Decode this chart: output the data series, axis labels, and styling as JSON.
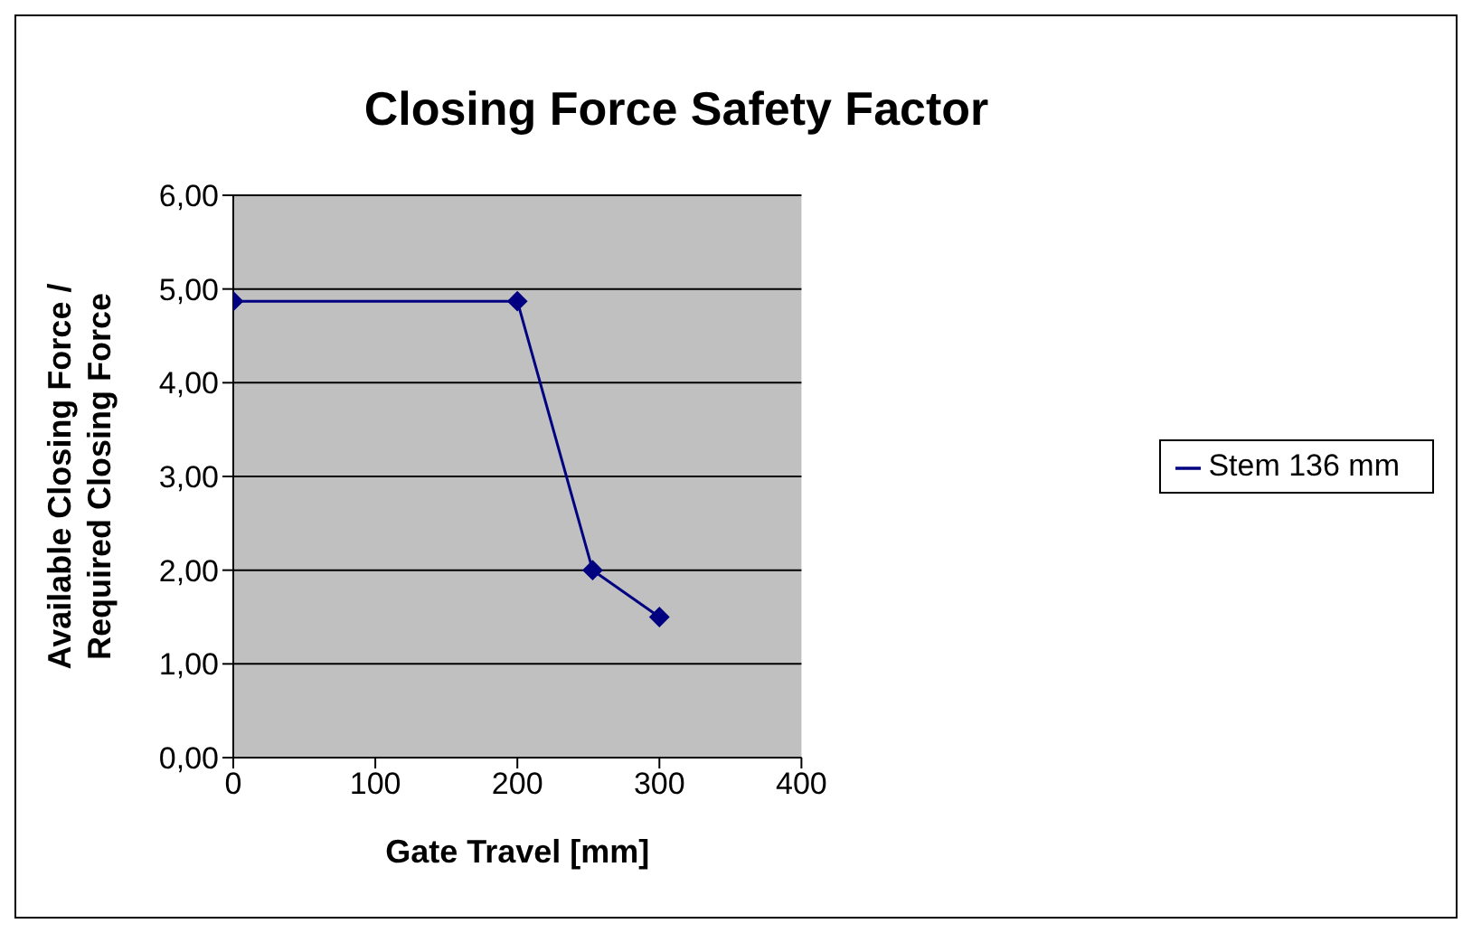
{
  "chart_data": {
    "type": "line",
    "title": "Closing Force Safety Factor",
    "xlabel": "Gate Travel [mm]",
    "ylabel": "Available Closing Force / Required Closing Force",
    "x": [
      0,
      200,
      253,
      300
    ],
    "series": [
      {
        "name": "Stem 136 mm",
        "color": "#000080",
        "values": [
          4.87,
          4.87,
          2.0,
          1.5
        ]
      }
    ],
    "xlim": [
      0,
      400
    ],
    "xticks": [
      0,
      100,
      200,
      300,
      400
    ],
    "ylim": [
      0,
      6
    ],
    "yticks": [
      {
        "value": 0,
        "label": "0,00"
      },
      {
        "value": 1,
        "label": "1,00"
      },
      {
        "value": 2,
        "label": "2,00"
      },
      {
        "value": 3,
        "label": "3,00"
      },
      {
        "value": 4,
        "label": "4,00"
      },
      {
        "value": 5,
        "label": "5,00"
      },
      {
        "value": 6,
        "label": "6,00"
      }
    ],
    "grid": "y",
    "legend": "right",
    "marker": "diamond",
    "line_style": "solid"
  }
}
